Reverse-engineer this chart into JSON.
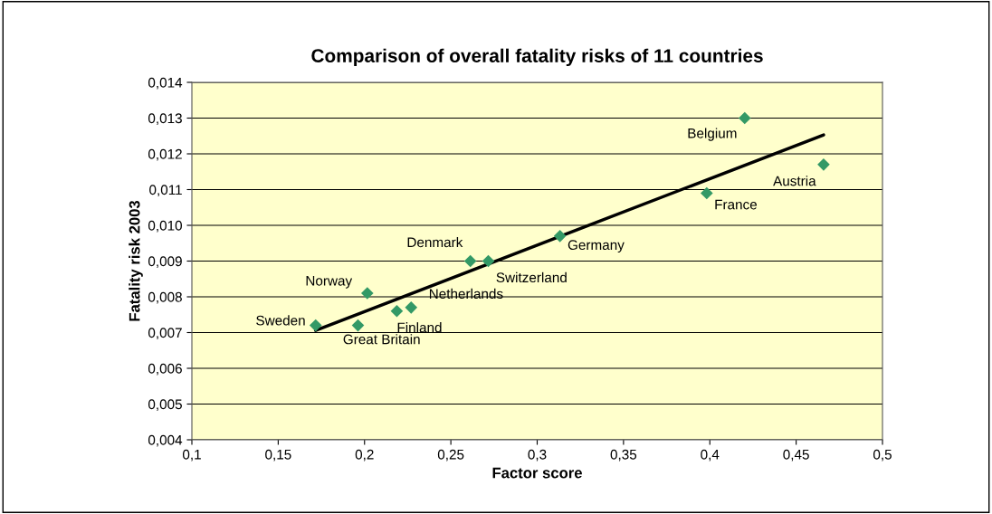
{
  "chart_data": {
    "type": "scatter",
    "title": "Comparison of overall fatality risks of 11 countries",
    "xlabel": "Factor score",
    "ylabel": "Fatality risk 2003",
    "xlim": [
      0.1,
      0.5
    ],
    "ylim": [
      0.004,
      0.014
    ],
    "xticks": [
      {
        "value": 0.1,
        "label": "0,1"
      },
      {
        "value": 0.15,
        "label": "0,15"
      },
      {
        "value": 0.2,
        "label": "0,2"
      },
      {
        "value": 0.25,
        "label": "0,25"
      },
      {
        "value": 0.3,
        "label": "0,3"
      },
      {
        "value": 0.35,
        "label": "0,35"
      },
      {
        "value": 0.4,
        "label": "0,4"
      },
      {
        "value": 0.45,
        "label": "0,45"
      },
      {
        "value": 0.5,
        "label": "0,5"
      }
    ],
    "yticks": [
      {
        "value": 0.004,
        "label": "0,004"
      },
      {
        "value": 0.005,
        "label": "0,005"
      },
      {
        "value": 0.006,
        "label": "0,006"
      },
      {
        "value": 0.007,
        "label": "0,007"
      },
      {
        "value": 0.008,
        "label": "0,008"
      },
      {
        "value": 0.009,
        "label": "0,009"
      },
      {
        "value": 0.01,
        "label": "0,010"
      },
      {
        "value": 0.011,
        "label": "0,011"
      },
      {
        "value": 0.012,
        "label": "0,012"
      },
      {
        "value": 0.013,
        "label": "0,013"
      },
      {
        "value": 0.014,
        "label": "0,014"
      }
    ],
    "grid": "y",
    "marker": "diamond",
    "series": [
      {
        "color": "#339966",
        "x": [
          0.1717,
          0.1962,
          0.2016,
          0.2187,
          0.227,
          0.2613,
          0.2717,
          0.3132,
          0.3982,
          0.4202,
          0.4659
        ],
        "values": [
          0.0072,
          0.0072,
          0.0081,
          0.0076,
          0.0077,
          0.009,
          0.009,
          0.0097,
          0.0109,
          0.013,
          0.0117
        ]
      },
      {
        "type": "line",
        "color": "#000000",
        "marker": "none",
        "x": [
          0.1717,
          0.4659
        ],
        "values": [
          0.00706,
          0.01253
        ]
      }
    ],
    "annotations": [
      {
        "text": "Sweden",
        "x": 0.1717,
        "y": 0.0072
      },
      {
        "text": "Great Britain",
        "x": 0.1962,
        "y": 0.0072
      },
      {
        "text": "Norway",
        "x": 0.2016,
        "y": 0.0081
      },
      {
        "text": "Finland",
        "x": 0.2187,
        "y": 0.0076
      },
      {
        "text": "Netherlands",
        "x": 0.227,
        "y": 0.0077
      },
      {
        "text": "Denmark",
        "x": 0.2613,
        "y": 0.009
      },
      {
        "text": "Switzerland",
        "x": 0.2717,
        "y": 0.009
      },
      {
        "text": "Germany",
        "x": 0.3132,
        "y": 0.0097
      },
      {
        "text": "France",
        "x": 0.3982,
        "y": 0.0109
      },
      {
        "text": "Belgium",
        "x": 0.4202,
        "y": 0.013
      },
      {
        "text": "Austria",
        "x": 0.4659,
        "y": 0.0117
      }
    ]
  }
}
